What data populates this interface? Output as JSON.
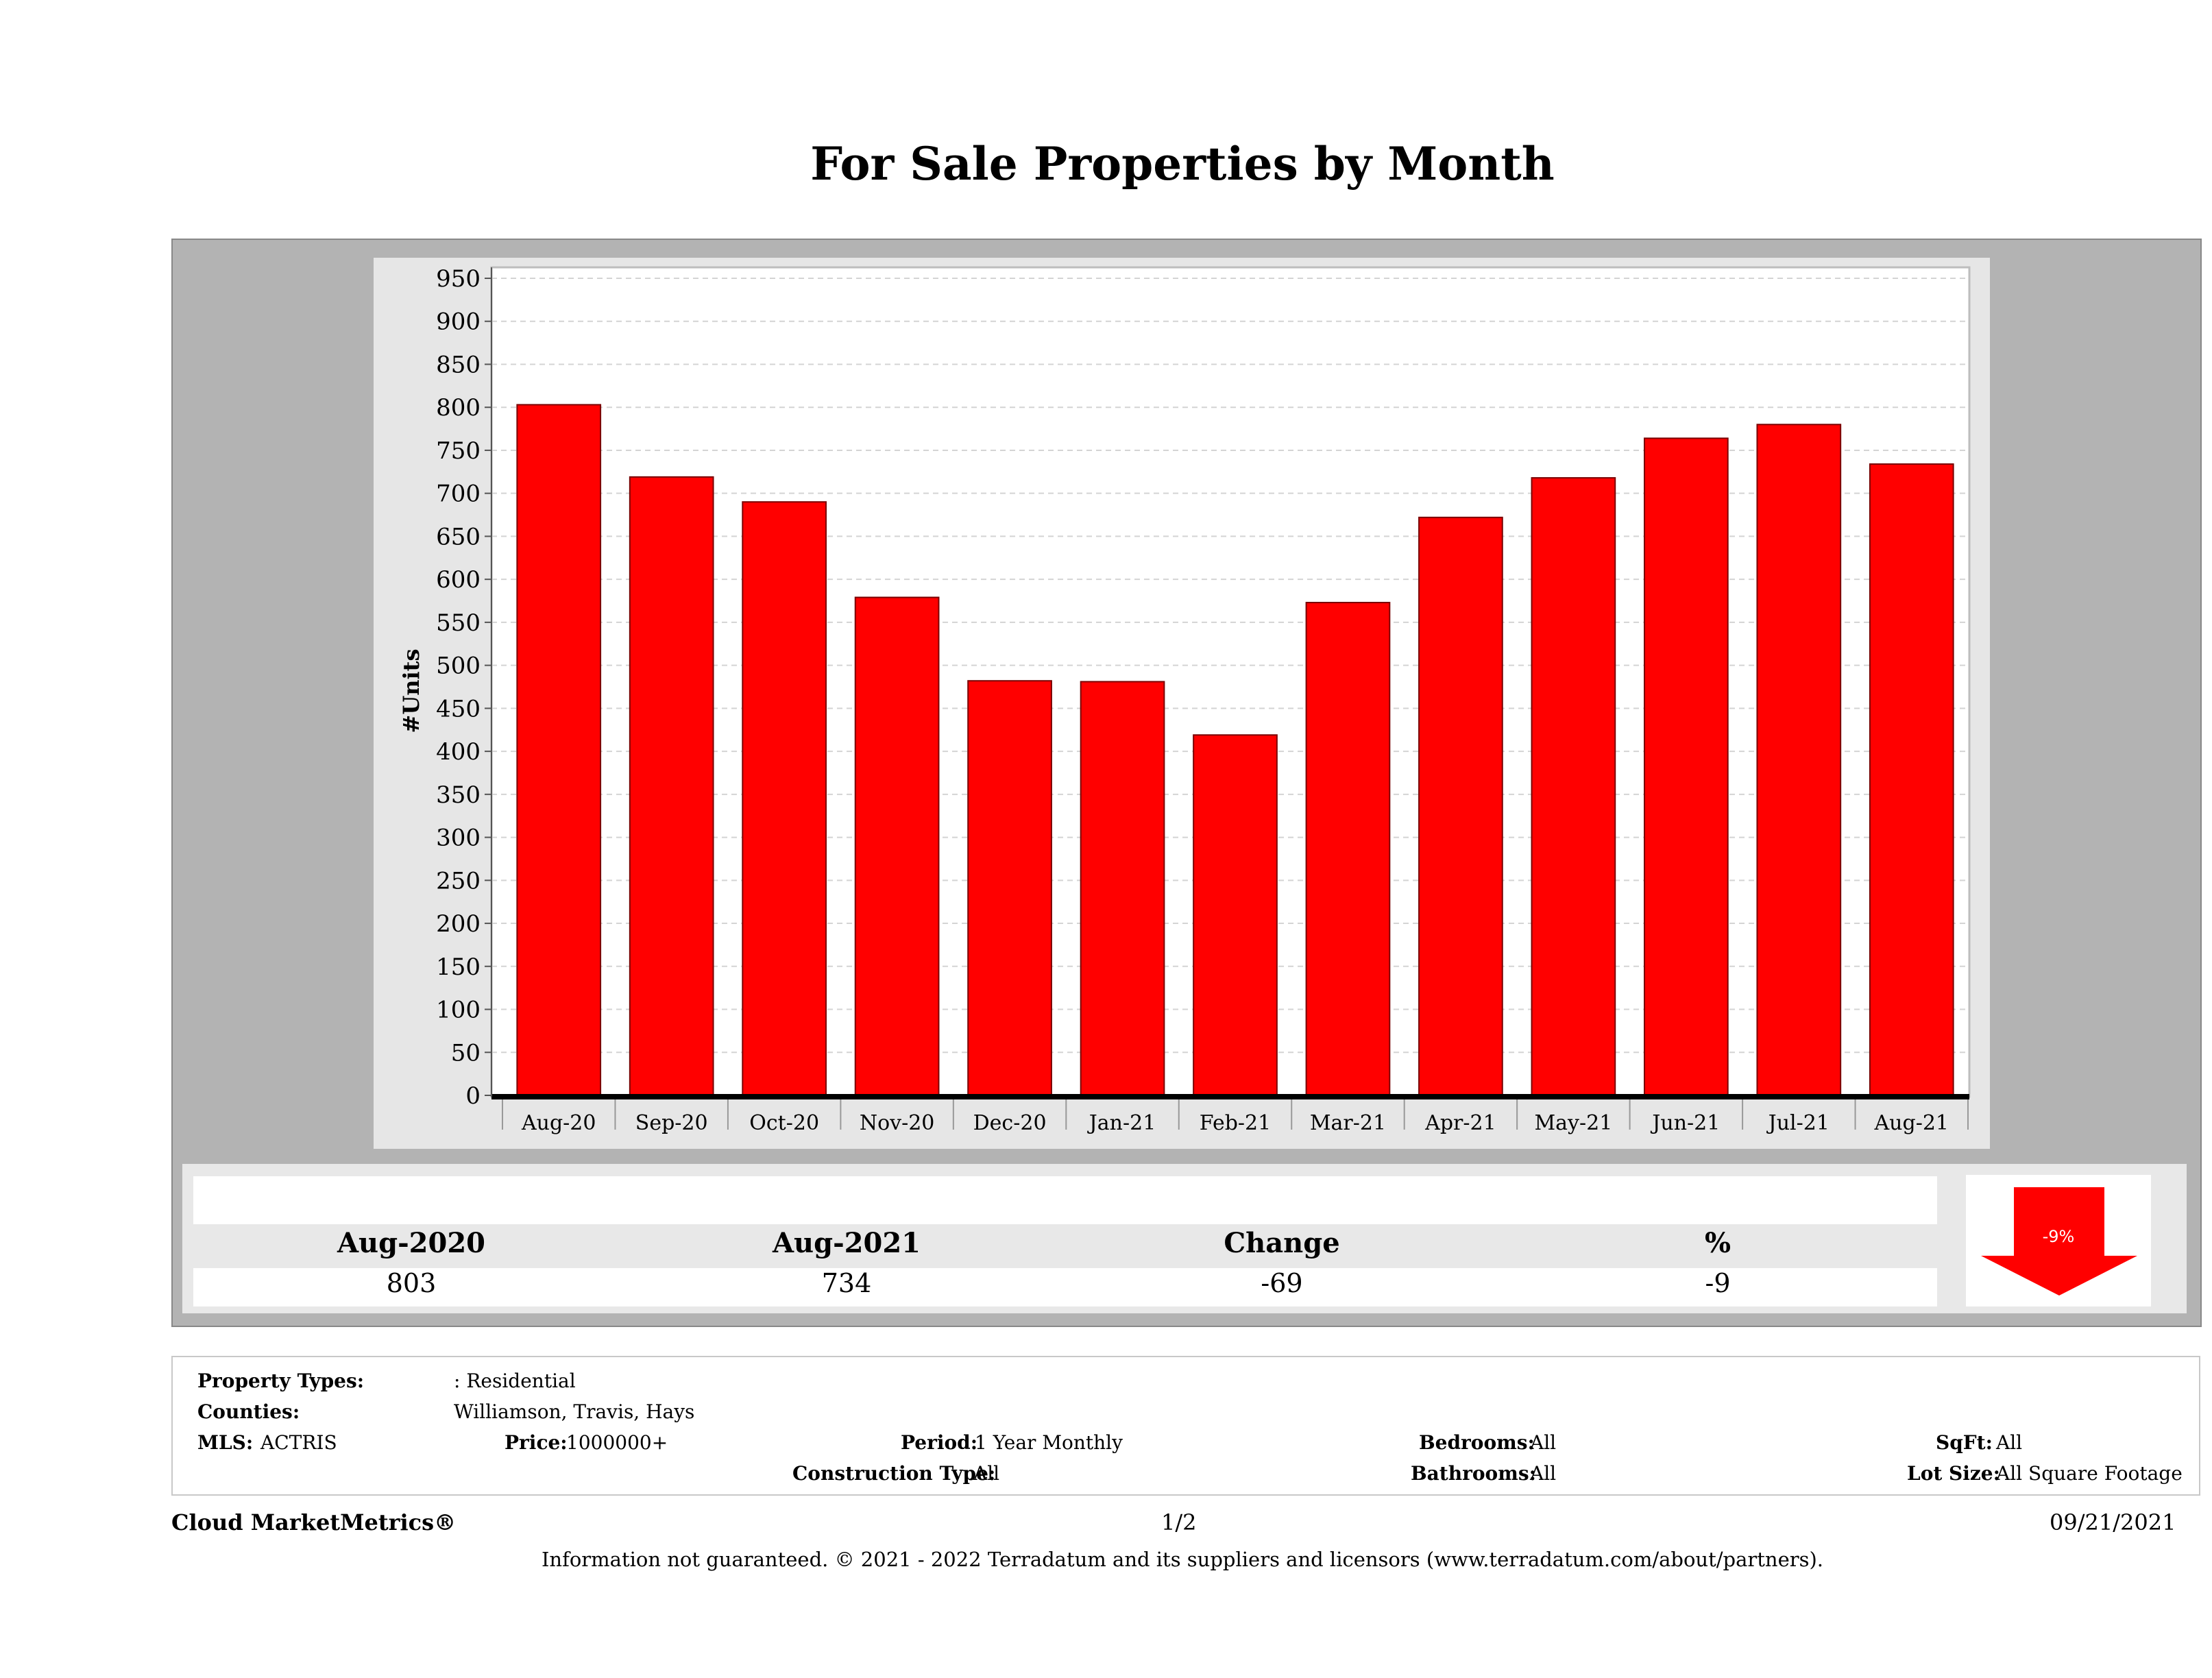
{
  "chart_data": {
    "type": "bar",
    "title": "For Sale Properties by Month",
    "ylabel": "#Units",
    "xlabel": "",
    "categories": [
      "Aug-20",
      "Sep-20",
      "Oct-20",
      "Nov-20",
      "Dec-20",
      "Jan-21",
      "Feb-21",
      "Mar-21",
      "Apr-21",
      "May-21",
      "Jun-21",
      "Jul-21",
      "Aug-21"
    ],
    "values": [
      803,
      719,
      690,
      579,
      482,
      481,
      419,
      573,
      672,
      718,
      764,
      780,
      734
    ],
    "ylim": [
      0,
      950
    ],
    "yticks": [
      0,
      50,
      100,
      150,
      200,
      250,
      300,
      350,
      400,
      450,
      500,
      550,
      600,
      650,
      700,
      750,
      800,
      850,
      900,
      950
    ],
    "grid": true,
    "bar_color": "#ff0000"
  },
  "stats": {
    "headers": [
      "Aug-2020",
      "Aug-2021",
      "Change",
      "%"
    ],
    "values": [
      "803",
      "734",
      "-69",
      "-9"
    ],
    "arrow_label": "-9%",
    "arrow_direction": "down",
    "arrow_color": "#ff0000"
  },
  "meta": {
    "property_types_label": "Property Types:",
    "property_types_value": ": Residential",
    "counties_label": "Counties:",
    "counties_value": "Williamson, Travis, Hays",
    "mls_label": "MLS:",
    "mls_value": "ACTRIS",
    "price_label": "Price:",
    "price_value": "1000000+",
    "period_label": "Period:",
    "period_value": "1 Year Monthly",
    "construction_label": "Construction Type:",
    "construction_value": "All",
    "bedrooms_label": "Bedrooms:",
    "bedrooms_value": "All",
    "bathrooms_label": "Bathrooms:",
    "bathrooms_value": "All",
    "sqft_label": "SqFt:",
    "sqft_value": "All",
    "lotsize_label": "Lot Size:",
    "lotsize_value": "All Square Footage"
  },
  "footer": {
    "brand": "Cloud MarketMetrics®",
    "page": "1/2",
    "date": "09/21/2021",
    "disclaimer": "Information not guaranteed. © 2021 - 2022 Terradatum and its suppliers and licensors (www.terradatum.com/about/partners)."
  }
}
